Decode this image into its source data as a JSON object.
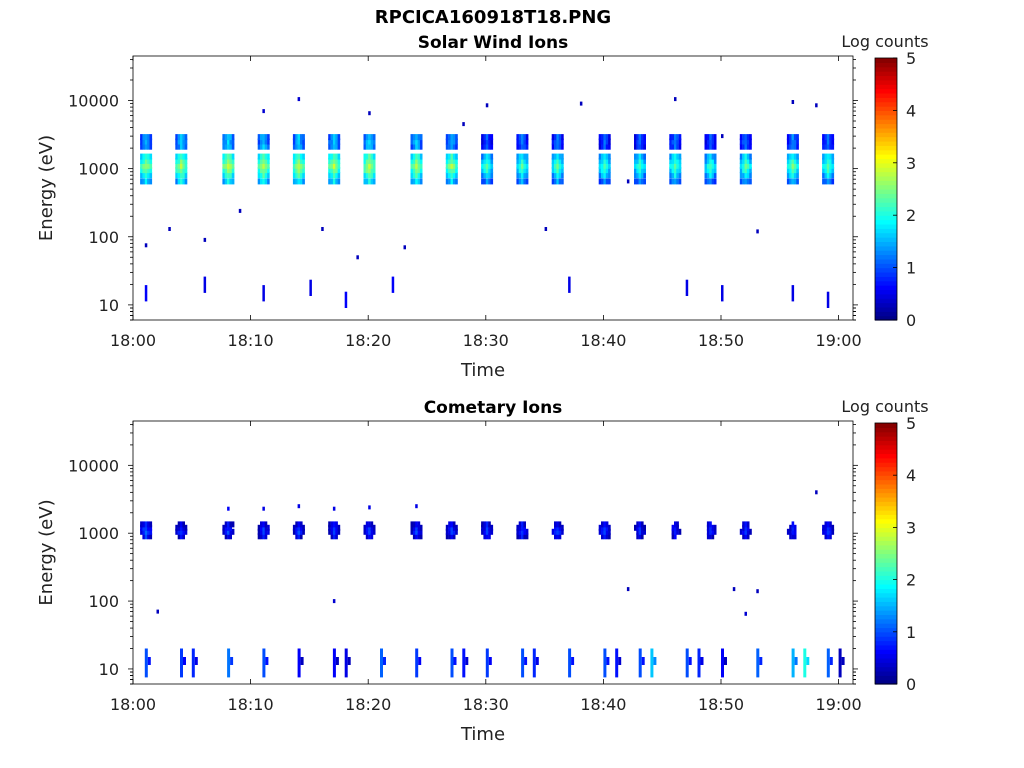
{
  "figure": {
    "file_title": "RPCICA160918T18.PNG"
  },
  "chart_data": [
    {
      "type": "heatmap",
      "title": "Solar Wind Ions",
      "xlabel": "Time",
      "ylabel": "Energy (eV)",
      "x_scale": "time",
      "y_scale": "log",
      "xlim": [
        "18:00",
        "19:00"
      ],
      "ylim": [
        6,
        45000
      ],
      "x_ticks": [
        "18:00",
        "18:10",
        "18:20",
        "18:30",
        "18:40",
        "18:50",
        "19:00"
      ],
      "y_ticks": [
        {
          "value": 10,
          "label": "10"
        },
        {
          "value": 100,
          "label": "100"
        },
        {
          "value": 1000,
          "label": "1000"
        },
        {
          "value": 10000,
          "label": "10000"
        }
      ],
      "colorbar": {
        "label": "Log counts",
        "min": 0,
        "max": 5,
        "ticks": [
          "0",
          "1",
          "2",
          "3",
          "4",
          "5"
        ],
        "colormap": "jet"
      },
      "peak_times": [
        "18:01",
        "18:04",
        "18:08",
        "18:11",
        "18:14",
        "18:17",
        "18:20",
        "18:24",
        "18:27",
        "18:30",
        "18:33",
        "18:36",
        "18:40",
        "18:43",
        "18:46",
        "18:49",
        "18:52",
        "18:56",
        "18:59"
      ],
      "peak_energy_ev": 1100,
      "secondary_energy_ev": 2500,
      "peak_log_counts": [
        2.7,
        2.8,
        2.9,
        2.8,
        2.8,
        2.8,
        2.9,
        2.8,
        2.7,
        2.3,
        2.4,
        2.4,
        2.3,
        2.3,
        2.4,
        2.3,
        2.4,
        2.5,
        2.4
      ],
      "scattered_points": [
        {
          "t": "18:01",
          "e": 75,
          "v": 0.3
        },
        {
          "t": "18:03",
          "e": 130,
          "v": 0.3
        },
        {
          "t": "18:06",
          "e": 90,
          "v": 0.3
        },
        {
          "t": "18:09",
          "e": 240,
          "v": 0.3
        },
        {
          "t": "18:11",
          "e": 7000,
          "v": 0.4
        },
        {
          "t": "18:14",
          "e": 10500,
          "v": 0.4
        },
        {
          "t": "18:16",
          "e": 130,
          "v": 0.3
        },
        {
          "t": "18:19",
          "e": 50,
          "v": 0.3
        },
        {
          "t": "18:20",
          "e": 6500,
          "v": 0.3
        },
        {
          "t": "18:23",
          "e": 70,
          "v": 0.3
        },
        {
          "t": "18:28",
          "e": 4500,
          "v": 0.3
        },
        {
          "t": "18:30",
          "e": 8500,
          "v": 0.3
        },
        {
          "t": "18:35",
          "e": 130,
          "v": 0.3
        },
        {
          "t": "18:38",
          "e": 9000,
          "v": 0.3
        },
        {
          "t": "18:42",
          "e": 650,
          "v": 0.3
        },
        {
          "t": "18:46",
          "e": 10500,
          "v": 0.3
        },
        {
          "t": "18:50",
          "e": 3000,
          "v": 0.3
        },
        {
          "t": "18:53",
          "e": 120,
          "v": 0.3
        },
        {
          "t": "18:56",
          "e": 9500,
          "v": 0.3
        },
        {
          "t": "18:58",
          "e": 8500,
          "v": 0.3
        }
      ],
      "low_energy_bursts": [
        {
          "t": "18:01",
          "e": 15,
          "v": 0.6
        },
        {
          "t": "18:06",
          "e": 20,
          "v": 0.5
        },
        {
          "t": "18:11",
          "e": 15,
          "v": 0.5
        },
        {
          "t": "18:15",
          "e": 18,
          "v": 0.5
        },
        {
          "t": "18:18",
          "e": 12,
          "v": 0.6
        },
        {
          "t": "18:22",
          "e": 20,
          "v": 0.6
        },
        {
          "t": "18:37",
          "e": 20,
          "v": 0.5
        },
        {
          "t": "18:47",
          "e": 18,
          "v": 0.5
        },
        {
          "t": "18:50",
          "e": 15,
          "v": 0.5
        },
        {
          "t": "18:56",
          "e": 15,
          "v": 0.5
        },
        {
          "t": "18:59",
          "e": 12,
          "v": 0.5
        }
      ]
    },
    {
      "type": "heatmap",
      "title": "Cometary Ions",
      "xlabel": "Time",
      "ylabel": "Energy (eV)",
      "x_scale": "time",
      "y_scale": "log",
      "xlim": [
        "18:00",
        "19:00"
      ],
      "ylim": [
        6,
        45000
      ],
      "x_ticks": [
        "18:00",
        "18:10",
        "18:20",
        "18:30",
        "18:40",
        "18:50",
        "19:00"
      ],
      "y_ticks": [
        {
          "value": 10,
          "label": "10"
        },
        {
          "value": 100,
          "label": "100"
        },
        {
          "value": 1000,
          "label": "1000"
        },
        {
          "value": 10000,
          "label": "10000"
        }
      ],
      "colorbar": {
        "label": "Log counts",
        "min": 0,
        "max": 5,
        "ticks": [
          "0",
          "1",
          "2",
          "3",
          "4",
          "5"
        ],
        "colormap": "jet"
      },
      "peak_times": [
        "18:01",
        "18:04",
        "18:08",
        "18:11",
        "18:14",
        "18:17",
        "18:20",
        "18:24",
        "18:27",
        "18:30",
        "18:33",
        "18:36",
        "18:40",
        "18:43",
        "18:46",
        "18:49",
        "18:52",
        "18:56",
        "18:59"
      ],
      "peak_energy_ev": 1100,
      "peak_log_counts": [
        1.2,
        1.0,
        1.0,
        1.0,
        1.0,
        1.0,
        1.0,
        1.0,
        1.0,
        1.0,
        1.0,
        1.0,
        1.0,
        0.9,
        0.9,
        0.9,
        0.9,
        0.9,
        1.0
      ],
      "scattered_points": [
        {
          "t": "18:02",
          "e": 70,
          "v": 0.3
        },
        {
          "t": "18:08",
          "e": 2300,
          "v": 0.6
        },
        {
          "t": "18:11",
          "e": 2300,
          "v": 0.5
        },
        {
          "t": "18:14",
          "e": 2500,
          "v": 0.5
        },
        {
          "t": "18:17",
          "e": 2300,
          "v": 0.5
        },
        {
          "t": "18:17",
          "e": 100,
          "v": 0.4
        },
        {
          "t": "18:20",
          "e": 2400,
          "v": 0.5
        },
        {
          "t": "18:24",
          "e": 2500,
          "v": 0.5
        },
        {
          "t": "18:42",
          "e": 150,
          "v": 0.3
        },
        {
          "t": "18:51",
          "e": 150,
          "v": 0.3
        },
        {
          "t": "18:52",
          "e": 65,
          "v": 0.4
        },
        {
          "t": "18:53",
          "e": 140,
          "v": 0.3
        },
        {
          "t": "18:58",
          "e": 4000,
          "v": 0.3
        }
      ],
      "low_energy_bursts": [
        {
          "t": "18:01",
          "e": 12,
          "v": 1.0
        },
        {
          "t": "18:04",
          "e": 12,
          "v": 0.9
        },
        {
          "t": "18:05",
          "e": 12,
          "v": 0.8
        },
        {
          "t": "18:08",
          "e": 12,
          "v": 1.2
        },
        {
          "t": "18:11",
          "e": 12,
          "v": 1.0
        },
        {
          "t": "18:14",
          "e": 12,
          "v": 0.6
        },
        {
          "t": "18:17",
          "e": 12,
          "v": 0.6
        },
        {
          "t": "18:18",
          "e": 12,
          "v": 0.5
        },
        {
          "t": "18:21",
          "e": 12,
          "v": 1.1
        },
        {
          "t": "18:24",
          "e": 12,
          "v": 0.9
        },
        {
          "t": "18:27",
          "e": 12,
          "v": 1.0
        },
        {
          "t": "18:28",
          "e": 12,
          "v": 0.7
        },
        {
          "t": "18:30",
          "e": 12,
          "v": 0.9
        },
        {
          "t": "18:33",
          "e": 12,
          "v": 1.0
        },
        {
          "t": "18:34",
          "e": 12,
          "v": 0.8
        },
        {
          "t": "18:37",
          "e": 12,
          "v": 1.0
        },
        {
          "t": "18:40",
          "e": 12,
          "v": 1.0
        },
        {
          "t": "18:41",
          "e": 12,
          "v": 0.7
        },
        {
          "t": "18:43",
          "e": 12,
          "v": 1.0
        },
        {
          "t": "18:44",
          "e": 12,
          "v": 1.6
        },
        {
          "t": "18:47",
          "e": 12,
          "v": 1.0
        },
        {
          "t": "18:48",
          "e": 12,
          "v": 0.8
        },
        {
          "t": "18:50",
          "e": 12,
          "v": 0.6
        },
        {
          "t": "18:53",
          "e": 12,
          "v": 1.1
        },
        {
          "t": "18:56",
          "e": 12,
          "v": 1.5
        },
        {
          "t": "18:57",
          "e": 12,
          "v": 2.0
        },
        {
          "t": "18:59",
          "e": 12,
          "v": 1.1
        },
        {
          "t": "19:00",
          "e": 25,
          "v": 0.3
        }
      ]
    }
  ]
}
